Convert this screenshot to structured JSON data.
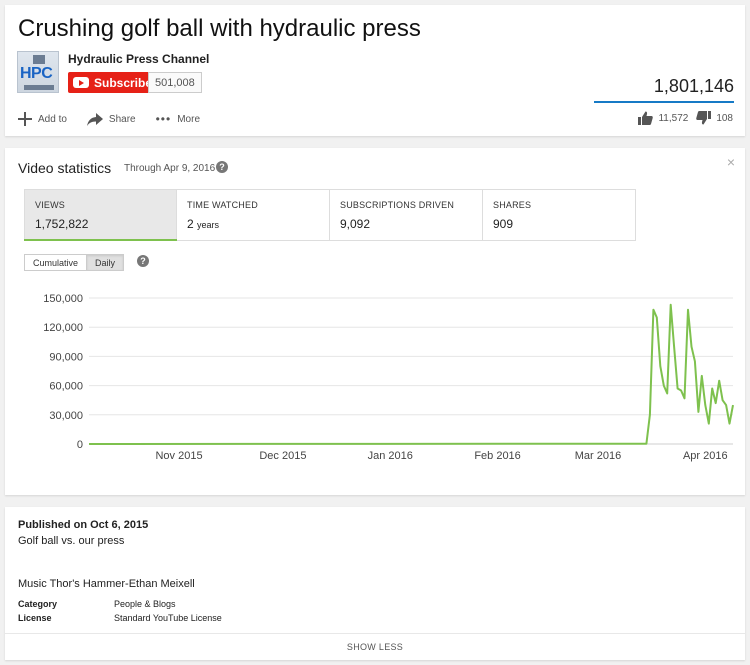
{
  "video": {
    "title": "Crushing golf ball with hydraulic press",
    "channel_name": "Hydraulic Press Channel",
    "channel_logo_text": "HPC",
    "subscribe_label": "Subscribe",
    "subscriber_count": "501,008",
    "view_count": "1,801,146",
    "likes": "11,572",
    "dislikes": "108"
  },
  "actions": {
    "add_to": "Add to",
    "share": "Share",
    "more": "More"
  },
  "stats": {
    "title": "Video statistics",
    "through": "Through Apr 9, 2016",
    "help": "?",
    "close": "×",
    "tabs": [
      {
        "label": "VIEWS",
        "value": "1,752,822",
        "unit": "",
        "active": true
      },
      {
        "label": "TIME WATCHED",
        "value": "2",
        "unit": "years",
        "active": false
      },
      {
        "label": "SUBSCRIPTIONS DRIVEN",
        "value": "9,092",
        "unit": "",
        "active": false
      },
      {
        "label": "SHARES",
        "value": "909",
        "unit": "",
        "active": false
      }
    ],
    "modes": [
      "Cumulative",
      "Daily"
    ],
    "active_mode": "Daily"
  },
  "chart_data": {
    "type": "line",
    "series_color": "#7ec14e",
    "ylim": [
      0,
      150000
    ],
    "yticks": [
      0,
      30000,
      60000,
      90000,
      120000,
      150000
    ],
    "ytick_labels": [
      "0",
      "30,000",
      "60,000",
      "90,000",
      "120,000",
      "150,000"
    ],
    "xlim": [
      "2015-10-06",
      "2016-04-09"
    ],
    "xticks": [
      {
        "date": "2015-11-01",
        "label": "Nov 2015"
      },
      {
        "date": "2015-12-01",
        "label": "Dec 2015"
      },
      {
        "date": "2016-01-01",
        "label": "Jan 2016"
      },
      {
        "date": "2016-02-01",
        "label": "Feb 2016"
      },
      {
        "date": "2016-03-01",
        "label": "Mar 2016"
      },
      {
        "date": "2016-04-01",
        "label": "Apr 2016"
      }
    ],
    "grid": true,
    "points": [
      {
        "x": "2015-10-06",
        "y": 0
      },
      {
        "x": "2016-03-15",
        "y": 300
      },
      {
        "x": "2016-03-16",
        "y": 30000
      },
      {
        "x": "2016-03-17",
        "y": 138000
      },
      {
        "x": "2016-03-18",
        "y": 130000
      },
      {
        "x": "2016-03-19",
        "y": 80000
      },
      {
        "x": "2016-03-20",
        "y": 60000
      },
      {
        "x": "2016-03-21",
        "y": 52000
      },
      {
        "x": "2016-03-22",
        "y": 143000
      },
      {
        "x": "2016-03-23",
        "y": 100000
      },
      {
        "x": "2016-03-24",
        "y": 57000
      },
      {
        "x": "2016-03-25",
        "y": 55000
      },
      {
        "x": "2016-03-26",
        "y": 47000
      },
      {
        "x": "2016-03-27",
        "y": 138000
      },
      {
        "x": "2016-03-28",
        "y": 100000
      },
      {
        "x": "2016-03-29",
        "y": 85000
      },
      {
        "x": "2016-03-30",
        "y": 33000
      },
      {
        "x": "2016-03-31",
        "y": 70000
      },
      {
        "x": "2016-04-01",
        "y": 40000
      },
      {
        "x": "2016-04-02",
        "y": 21000
      },
      {
        "x": "2016-04-03",
        "y": 57000
      },
      {
        "x": "2016-04-04",
        "y": 42000
      },
      {
        "x": "2016-04-05",
        "y": 65000
      },
      {
        "x": "2016-04-06",
        "y": 45000
      },
      {
        "x": "2016-04-07",
        "y": 40000
      },
      {
        "x": "2016-04-08",
        "y": 21000
      },
      {
        "x": "2016-04-09",
        "y": 40000
      }
    ]
  },
  "description": {
    "published": "Published on Oct 6, 2015",
    "text": "Golf ball vs. our press",
    "music": "Music Thor's Hammer-Ethan Meixell",
    "category_label": "Category",
    "category_value": "People & Blogs",
    "license_label": "License",
    "license_value": "Standard YouTube License",
    "show_less": "SHOW LESS"
  }
}
